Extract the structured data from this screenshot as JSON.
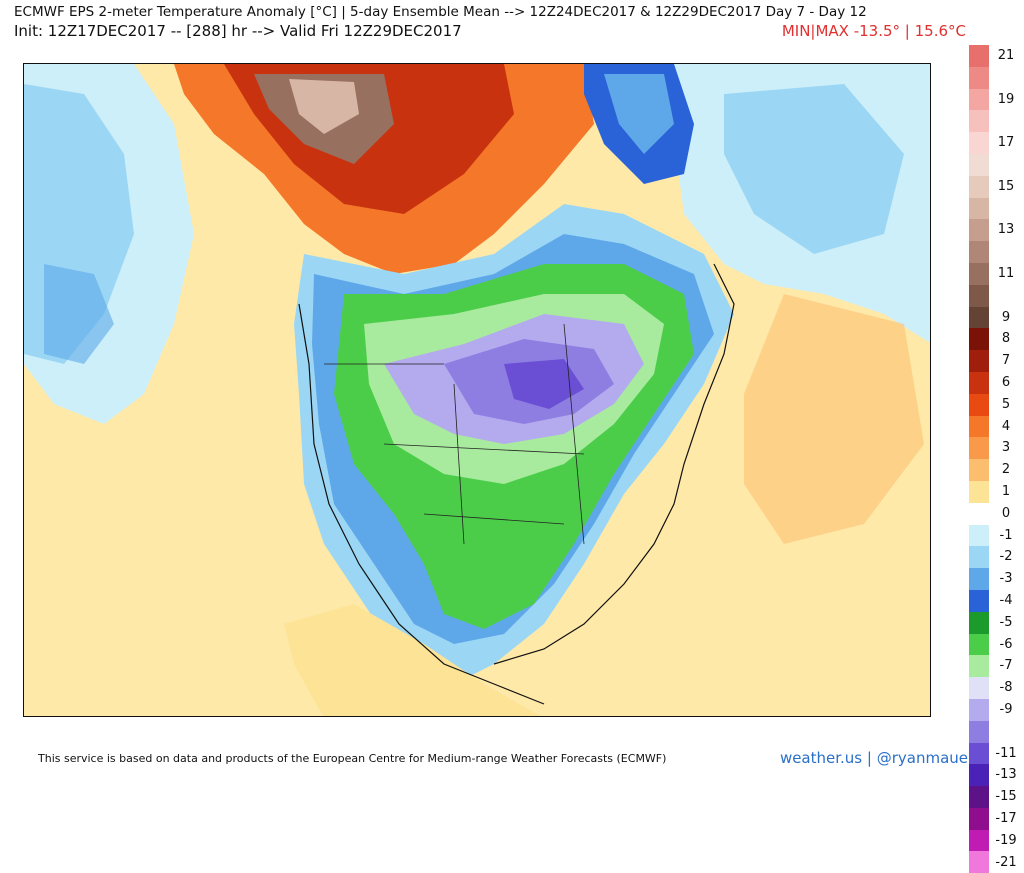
{
  "header": {
    "title_line1": "ECMWF EPS 2-meter Temperature Anomaly [°C] | 5-day Ensemble Mean --> 12Z24DEC2017 & 12Z29DEC2017   Day 7 - Day 12",
    "title_line2": "Init: 12Z17DEC2017 -- [288] hr --> Valid Fri 12Z29DEC2017",
    "minmax": "MIN|MAX -13.5° | 15.6°C"
  },
  "legend": {
    "items": [
      {
        "label": "21",
        "color": "#e8706c"
      },
      {
        "label": "",
        "color": "#ee8a86"
      },
      {
        "label": "19",
        "color": "#f3a6a2"
      },
      {
        "label": "",
        "color": "#f6c0bc"
      },
      {
        "label": "17",
        "color": "#f9d6d2"
      },
      {
        "label": "",
        "color": "#f0dcd2"
      },
      {
        "label": "15",
        "color": "#e6cabc"
      },
      {
        "label": "",
        "color": "#d8b6a6"
      },
      {
        "label": "13",
        "color": "#c69e8e"
      },
      {
        "label": "",
        "color": "#b08676"
      },
      {
        "label": "11",
        "color": "#98705f"
      },
      {
        "label": "",
        "color": "#7e5848"
      },
      {
        "label": "9",
        "color": "#644234"
      },
      {
        "label": "8",
        "color": "#7a1208"
      },
      {
        "label": "7",
        "color": "#a01e0c"
      },
      {
        "label": "6",
        "color": "#c8320e"
      },
      {
        "label": "5",
        "color": "#e84a12"
      },
      {
        "label": "4",
        "color": "#f4772a"
      },
      {
        "label": "3",
        "color": "#f89a4a"
      },
      {
        "label": "2",
        "color": "#fbbd6e"
      },
      {
        "label": "1",
        "color": "#fde396"
      },
      {
        "label": "0",
        "color": "#ffffff"
      },
      {
        "label": "-1",
        "color": "#cdeffa"
      },
      {
        "label": "-2",
        "color": "#9bd7f4"
      },
      {
        "label": "-3",
        "color": "#5ea8ea"
      },
      {
        "label": "-4",
        "color": "#2a62d8"
      },
      {
        "label": "-5",
        "color": "#1c9a2c"
      },
      {
        "label": "-6",
        "color": "#4ccd4a"
      },
      {
        "label": "-7",
        "color": "#a9eb9e"
      },
      {
        "label": "-8",
        "color": "#e0e0f6"
      },
      {
        "label": "-9",
        "color": "#b4aaee"
      },
      {
        "label": "",
        "color": "#8e7ee2"
      },
      {
        "label": "-11",
        "color": "#6a4fd4"
      },
      {
        "label": "-13",
        "color": "#4a22b8"
      },
      {
        "label": "-15",
        "color": "#5e1288"
      },
      {
        "label": "-17",
        "color": "#8e0e8e"
      },
      {
        "label": "-19",
        "color": "#c01cb4"
      },
      {
        "label": "-21",
        "color": "#f078dc"
      }
    ]
  },
  "footer": {
    "disclaimer": "This service is based on data and products of the European Centre for Medium-range Weather Forecasts (ECMWF)",
    "credit": "weather.us | @ryanmaue"
  }
}
